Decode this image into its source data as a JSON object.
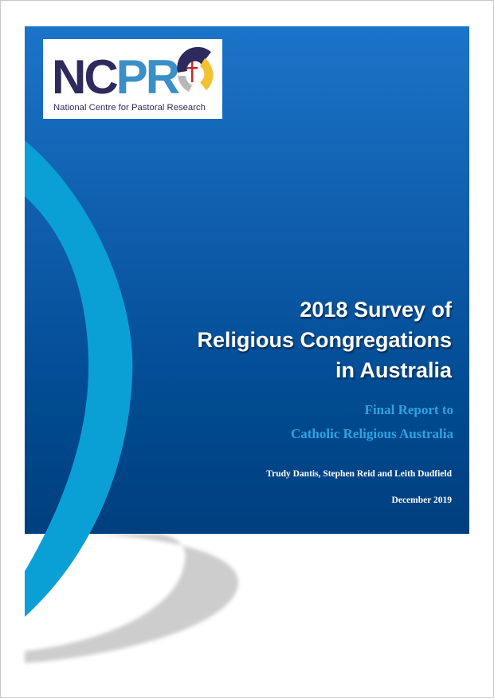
{
  "logo": {
    "letters_dark": "NC",
    "letters_light": "PR",
    "tagline": "National Centre for Pastoral Research"
  },
  "title": {
    "lines": [
      "2018 Survey of",
      "Religious Congregations",
      "in Australia"
    ]
  },
  "subtitle": {
    "lines": [
      "Final Report to",
      "Catholic Religious Australia"
    ]
  },
  "authors": "Trudy Dantis, Stephen Reid and Leith Dudfield",
  "date": "December 2019",
  "colors": {
    "background_blue_top": "#1b74c9",
    "background_blue_bottom": "#003f7e",
    "arc_light_blue": "#0aa0d6",
    "shadow_grey": "#cccccc",
    "subtitle": "#2fa3e0"
  }
}
